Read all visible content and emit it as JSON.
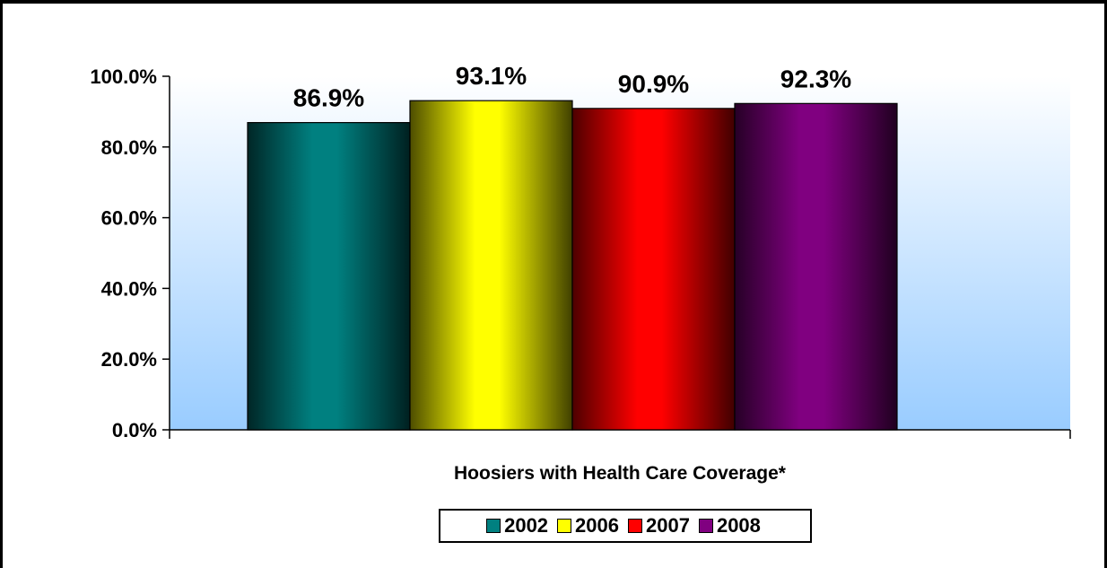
{
  "chart_data": {
    "type": "bar",
    "title": "",
    "xlabel": "Hoosiers with Health Care Coverage*",
    "ylabel": "",
    "categories": [
      "Hoosiers with Health Care Coverage*"
    ],
    "series": [
      {
        "name": "2002",
        "values": [
          86.9
        ],
        "color": "#008080"
      },
      {
        "name": "2006",
        "values": [
          93.1
        ],
        "color": "#ffff00"
      },
      {
        "name": "2007",
        "values": [
          90.9
        ],
        "color": "#ff0000"
      },
      {
        "name": "2008",
        "values": [
          92.3
        ],
        "color": "#800080"
      }
    ],
    "data_labels": [
      "86.9%",
      "93.1%",
      "90.9%",
      "92.3%"
    ],
    "yticks": [
      "0.0%",
      "20.0%",
      "40.0%",
      "60.0%",
      "80.0%",
      "100.0%"
    ],
    "ylim": [
      0,
      100
    ],
    "grid": false,
    "legend_position": "bottom",
    "plot_background": "gradient white to light blue (#ffffff to #99ccff)"
  },
  "legend": {
    "items": [
      {
        "label": "2002",
        "color": "#008080"
      },
      {
        "label": "2006",
        "color": "#ffff00"
      },
      {
        "label": "2007",
        "color": "#ff0000"
      },
      {
        "label": "2008",
        "color": "#800080"
      }
    ]
  }
}
